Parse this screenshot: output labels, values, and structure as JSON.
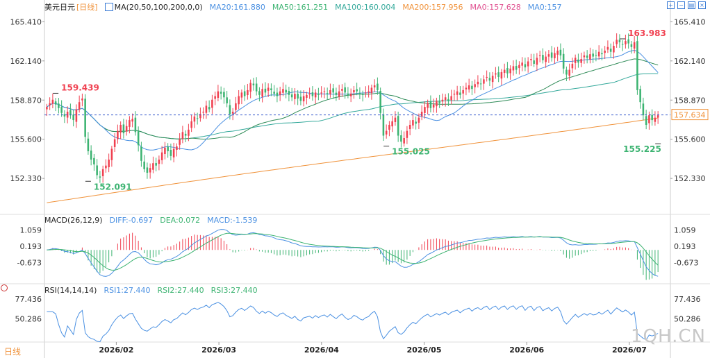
{
  "header": {
    "symbol": "美元日元",
    "period": "[日线]",
    "ma_label": "MA(20,50,100,200,0,0)",
    "ma20": "MA20:161.880",
    "ma50": "MA50:161.251",
    "ma100": "MA100:160.004",
    "ma200": "MA200:157.956",
    "ma0a": "MA0:157.628",
    "ma0b": "MA0:157"
  },
  "macd_header": {
    "label": "MACD(26,12,9)",
    "diff": "DIFF:-0.697",
    "dea": "DEA:0.072",
    "macd": "MACD:-1.539"
  },
  "rsi_header": {
    "label": "RSI(14,14,14)",
    "rsi1": "RSI1:27.440",
    "rsi2": "RSI2:27.440",
    "rsi3": "RSI3:27.440"
  },
  "footer": {
    "period": "日线",
    "watermark": "1QH.CN"
  },
  "colors": {
    "up": "#f04050",
    "down": "#3cb371",
    "ma20": "#4a90e2",
    "ma50": "#2e8b57",
    "ma100": "#32a89a",
    "ma200": "#f0923a",
    "diff": "#4a90e2",
    "dea": "#3cb371",
    "rsi": "#4a90e2",
    "dash": "#3355cc",
    "accent": "#f0923a"
  },
  "icons": [
    "zoom-in-icon",
    "zoom-out-icon",
    "layout-icon",
    "close-icon"
  ],
  "chart_data": [
    {
      "type": "candlestick",
      "title": "美元日元 [日线]",
      "y_ticks": [
        "165.410",
        "162.140",
        "158.870",
        "155.600",
        "152.330"
      ],
      "x_ticks": [
        "2026/02",
        "2026/03",
        "2026/04",
        "2026/05",
        "2026/06",
        "2026/07"
      ],
      "ylim": [
        149.5,
        166.3
      ],
      "last_price": "157.634",
      "annotations": [
        {
          "text": "159.439",
          "x": 3,
          "y": 159.439,
          "color": "up"
        },
        {
          "text": "152.091",
          "x": 14,
          "y": 152.091,
          "color": "down"
        },
        {
          "text": "155.025",
          "x": 115,
          "y": 155.025,
          "color": "down"
        },
        {
          "text": "163.983",
          "x": 195,
          "y": 163.983,
          "color": "up"
        },
        {
          "text": "155.225",
          "x": 207,
          "y": 155.225,
          "color": "down"
        }
      ],
      "candles_close": [
        158.3,
        158.6,
        158.9,
        158.5,
        158.2,
        157.8,
        157.5,
        157.9,
        157.6,
        157.2,
        158.1,
        158.7,
        159.0,
        155.8,
        154.6,
        153.9,
        153.5,
        152.6,
        152.4,
        153.1,
        153.4,
        153.9,
        154.8,
        155.6,
        156.3,
        156.8,
        156.1,
        156.7,
        157.2,
        157.3,
        156.2,
        155.1,
        153.8,
        153.1,
        152.8,
        153.2,
        153.6,
        153.4,
        153.9,
        154.5,
        154.9,
        154.6,
        154.2,
        154.8,
        155.0,
        155.6,
        156.2,
        155.9,
        156.4,
        157.1,
        157.5,
        157.3,
        157.7,
        157.9,
        158.4,
        158.1,
        158.9,
        159.2,
        159.6,
        159.4,
        159.1,
        158.6,
        157.7,
        157.9,
        158.6,
        159.2,
        159.5,
        159.2,
        159.7,
        160.3,
        160.1,
        159.6,
        159.3,
        159.8,
        159.5,
        159.9,
        159.7,
        159.4,
        159.2,
        159.6,
        159.8,
        159.5,
        159.3,
        159.1,
        159.4,
        159.0,
        158.8,
        159.2,
        159.3,
        159.4,
        159.2,
        159.5,
        159.3,
        159.5,
        159.6,
        159.4,
        159.7,
        159.5,
        159.3,
        159.6,
        159.8,
        159.5,
        159.3,
        159.4,
        159.7,
        159.6,
        159.4,
        159.3,
        159.5,
        159.6,
        159.9,
        160.1,
        159.7,
        157.8,
        155.9,
        156.3,
        156.8,
        157.1,
        157.4,
        155.9,
        155.4,
        155.7,
        156.3,
        156.8,
        157.2,
        156.9,
        157.4,
        157.9,
        158.3,
        158.6,
        158.2,
        158.5,
        158.8,
        158.6,
        158.9,
        159.1,
        158.8,
        159.2,
        159.4,
        159.6,
        159.3,
        159.7,
        159.9,
        160.1,
        159.8,
        160.2,
        160.4,
        160.2,
        160.6,
        160.8,
        160.5,
        160.9,
        161.1,
        160.8,
        161.2,
        161.4,
        161.1,
        161.5,
        161.7,
        161.4,
        161.8,
        162.0,
        161.6,
        162.1,
        162.3,
        161.9,
        162.4,
        162.6,
        162.2,
        162.5,
        162.7,
        162.4,
        162.8,
        163.0,
        162.6,
        161.5,
        161.0,
        161.4,
        161.9,
        162.4,
        162.0,
        162.3,
        162.6,
        162.4,
        162.7,
        162.5,
        162.6,
        162.9,
        162.7,
        163.0,
        163.3,
        162.9,
        163.4,
        163.9,
        163.7,
        163.5,
        163.8,
        163.6,
        163.3,
        163.7,
        159.7,
        158.7,
        157.6,
        156.8,
        157.6,
        157.2,
        157.4,
        157.6
      ]
    },
    {
      "type": "line",
      "title": "MACD(26,12,9)",
      "y_ticks": [
        "1.059",
        "0.193",
        "-0.673"
      ],
      "ylim": [
        -1.75,
        1.4
      ],
      "series": [
        {
          "name": "DIFF",
          "values": "computed"
        },
        {
          "name": "DEA",
          "values": "computed"
        }
      ]
    },
    {
      "type": "line",
      "title": "RSI(14,14,14)",
      "y_ticks": [
        "77.436",
        "50.286"
      ],
      "ylim": [
        15,
        85
      ],
      "series": [
        {
          "name": "RSI1",
          "values": "computed"
        }
      ]
    }
  ]
}
